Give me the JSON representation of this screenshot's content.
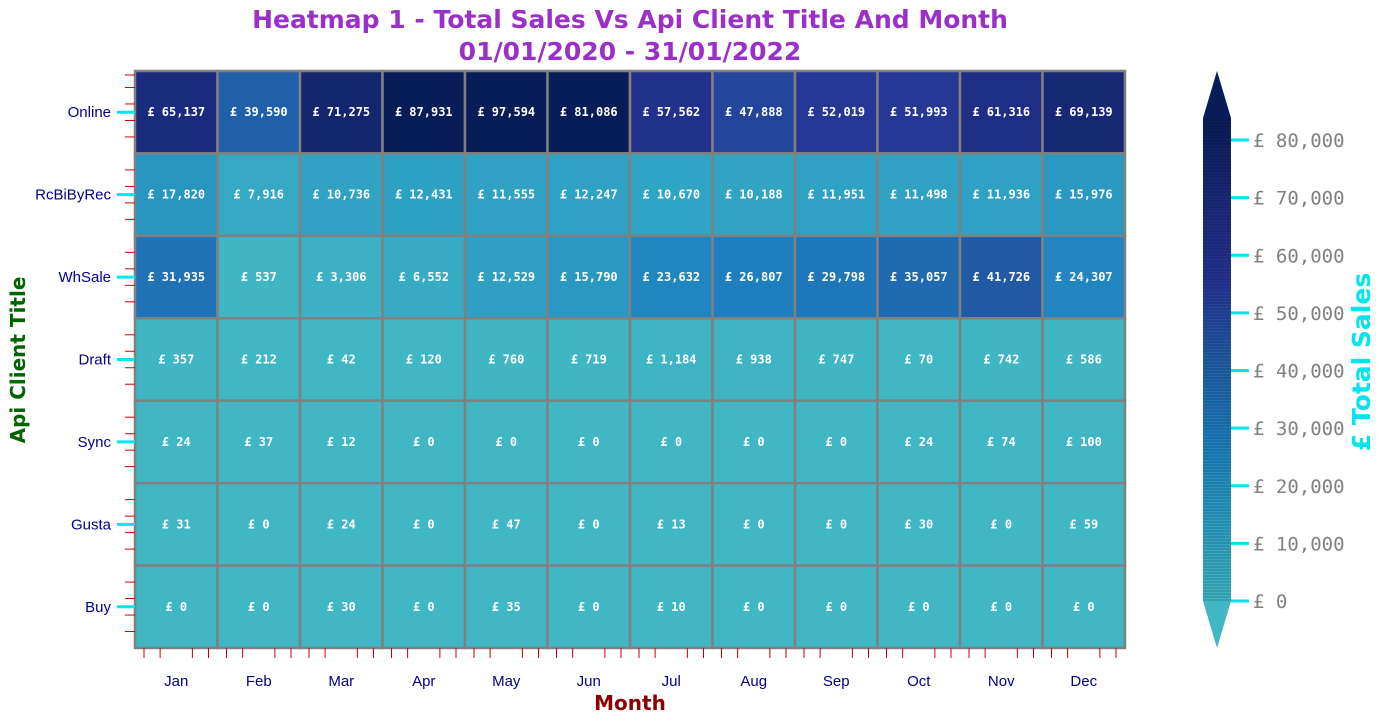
{
  "chart_data": {
    "type": "heatmap",
    "title_line1": "Heatmap 1 - Total Sales Vs Api Client Title And Month",
    "title_line2": "01/01/2020 - 31/01/2022",
    "xlabel": "Month",
    "ylabel": "Api Client Title",
    "colorbar_label": "£ Total Sales",
    "x": [
      "Jan",
      "Feb",
      "Mar",
      "Apr",
      "May",
      "Jun",
      "Jul",
      "Aug",
      "Sep",
      "Oct",
      "Nov",
      "Dec"
    ],
    "y": [
      "Online",
      "RcBiByRec",
      "WhSale",
      "Draft",
      "Sync",
      "Gusta",
      "Buy"
    ],
    "values": [
      [
        65137,
        39590,
        71275,
        87931,
        97594,
        81086,
        57562,
        47888,
        52019,
        51993,
        61316,
        69139
      ],
      [
        17820,
        7916,
        10736,
        12431,
        11555,
        12247,
        10670,
        10188,
        11951,
        11498,
        11936,
        15976
      ],
      [
        31935,
        537,
        3306,
        6552,
        12529,
        15790,
        23632,
        26807,
        29798,
        35057,
        41726,
        24307
      ],
      [
        357,
        212,
        42,
        120,
        760,
        719,
        1184,
        938,
        747,
        70,
        742,
        586
      ],
      [
        24,
        37,
        12,
        0,
        0,
        0,
        0,
        0,
        0,
        24,
        74,
        100
      ],
      [
        31,
        0,
        24,
        0,
        47,
        0,
        13,
        0,
        0,
        30,
        0,
        59
      ],
      [
        0,
        0,
        30,
        0,
        35,
        0,
        10,
        0,
        0,
        0,
        0,
        0
      ]
    ],
    "cell_labels": [
      [
        "£ 65,137",
        "£ 39,590",
        "£ 71,275",
        "£ 87,931",
        "£ 97,594",
        "£ 81,086",
        "£ 57,562",
        "£ 47,888",
        "£ 52,019",
        "£ 51,993",
        "£ 61,316",
        "£ 69,139"
      ],
      [
        "£ 17,820",
        "£ 7,916",
        "£ 10,736",
        "£ 12,431",
        "£ 11,555",
        "£ 12,247",
        "£ 10,670",
        "£ 10,188",
        "£ 11,951",
        "£ 11,498",
        "£ 11,936",
        "£ 15,976"
      ],
      [
        "£ 31,935",
        "£ 537",
        "£ 3,306",
        "£ 6,552",
        "£ 12,529",
        "£ 15,790",
        "£ 23,632",
        "£ 26,807",
        "£ 29,798",
        "£ 35,057",
        "£ 41,726",
        "£ 24,307"
      ],
      [
        "£ 357",
        "£ 212",
        "£ 42",
        "£ 120",
        "£ 760",
        "£ 719",
        "£ 1,184",
        "£ 938",
        "£ 747",
        "£ 70",
        "£ 742",
        "£ 586"
      ],
      [
        "£ 24",
        "£ 37",
        "£ 12",
        "£ 0",
        "£ 0",
        "£ 0",
        "£ 0",
        "£ 0",
        "£ 0",
        "£ 24",
        "£ 74",
        "£ 100"
      ],
      [
        "£ 31",
        "£ 0",
        "£ 24",
        "£ 0",
        "£ 47",
        "£ 0",
        "£ 13",
        "£ 0",
        "£ 0",
        "£ 30",
        "£ 0",
        "£ 59"
      ],
      [
        "£ 0",
        "£ 0",
        "£ 30",
        "£ 0",
        "£ 35",
        "£ 0",
        "£ 10",
        "£ 0",
        "£ 0",
        "£ 0",
        "£ 0",
        "£ 0"
      ]
    ],
    "colorbar_range": [
      0,
      80000
    ],
    "colorbar_ticks": [
      0,
      10000,
      20000,
      30000,
      40000,
      50000,
      60000,
      70000,
      80000
    ],
    "colorbar_tick_labels": [
      "£ 0",
      "£ 10,000",
      "£ 20,000",
      "£ 30,000",
      "£ 40,000",
      "£ 50,000",
      "£ 60,000",
      "£ 70,000",
      "£ 80,000"
    ],
    "colormap": [
      "#41b6c4",
      "#2c9fc4",
      "#1d7fbf",
      "#225ea8",
      "#253494",
      "#1a2a7a",
      "#081d58"
    ],
    "cell_border_color": "#808080",
    "tick_mark_color": "#00e5ee",
    "minor_tick_color": "#cc0000"
  }
}
